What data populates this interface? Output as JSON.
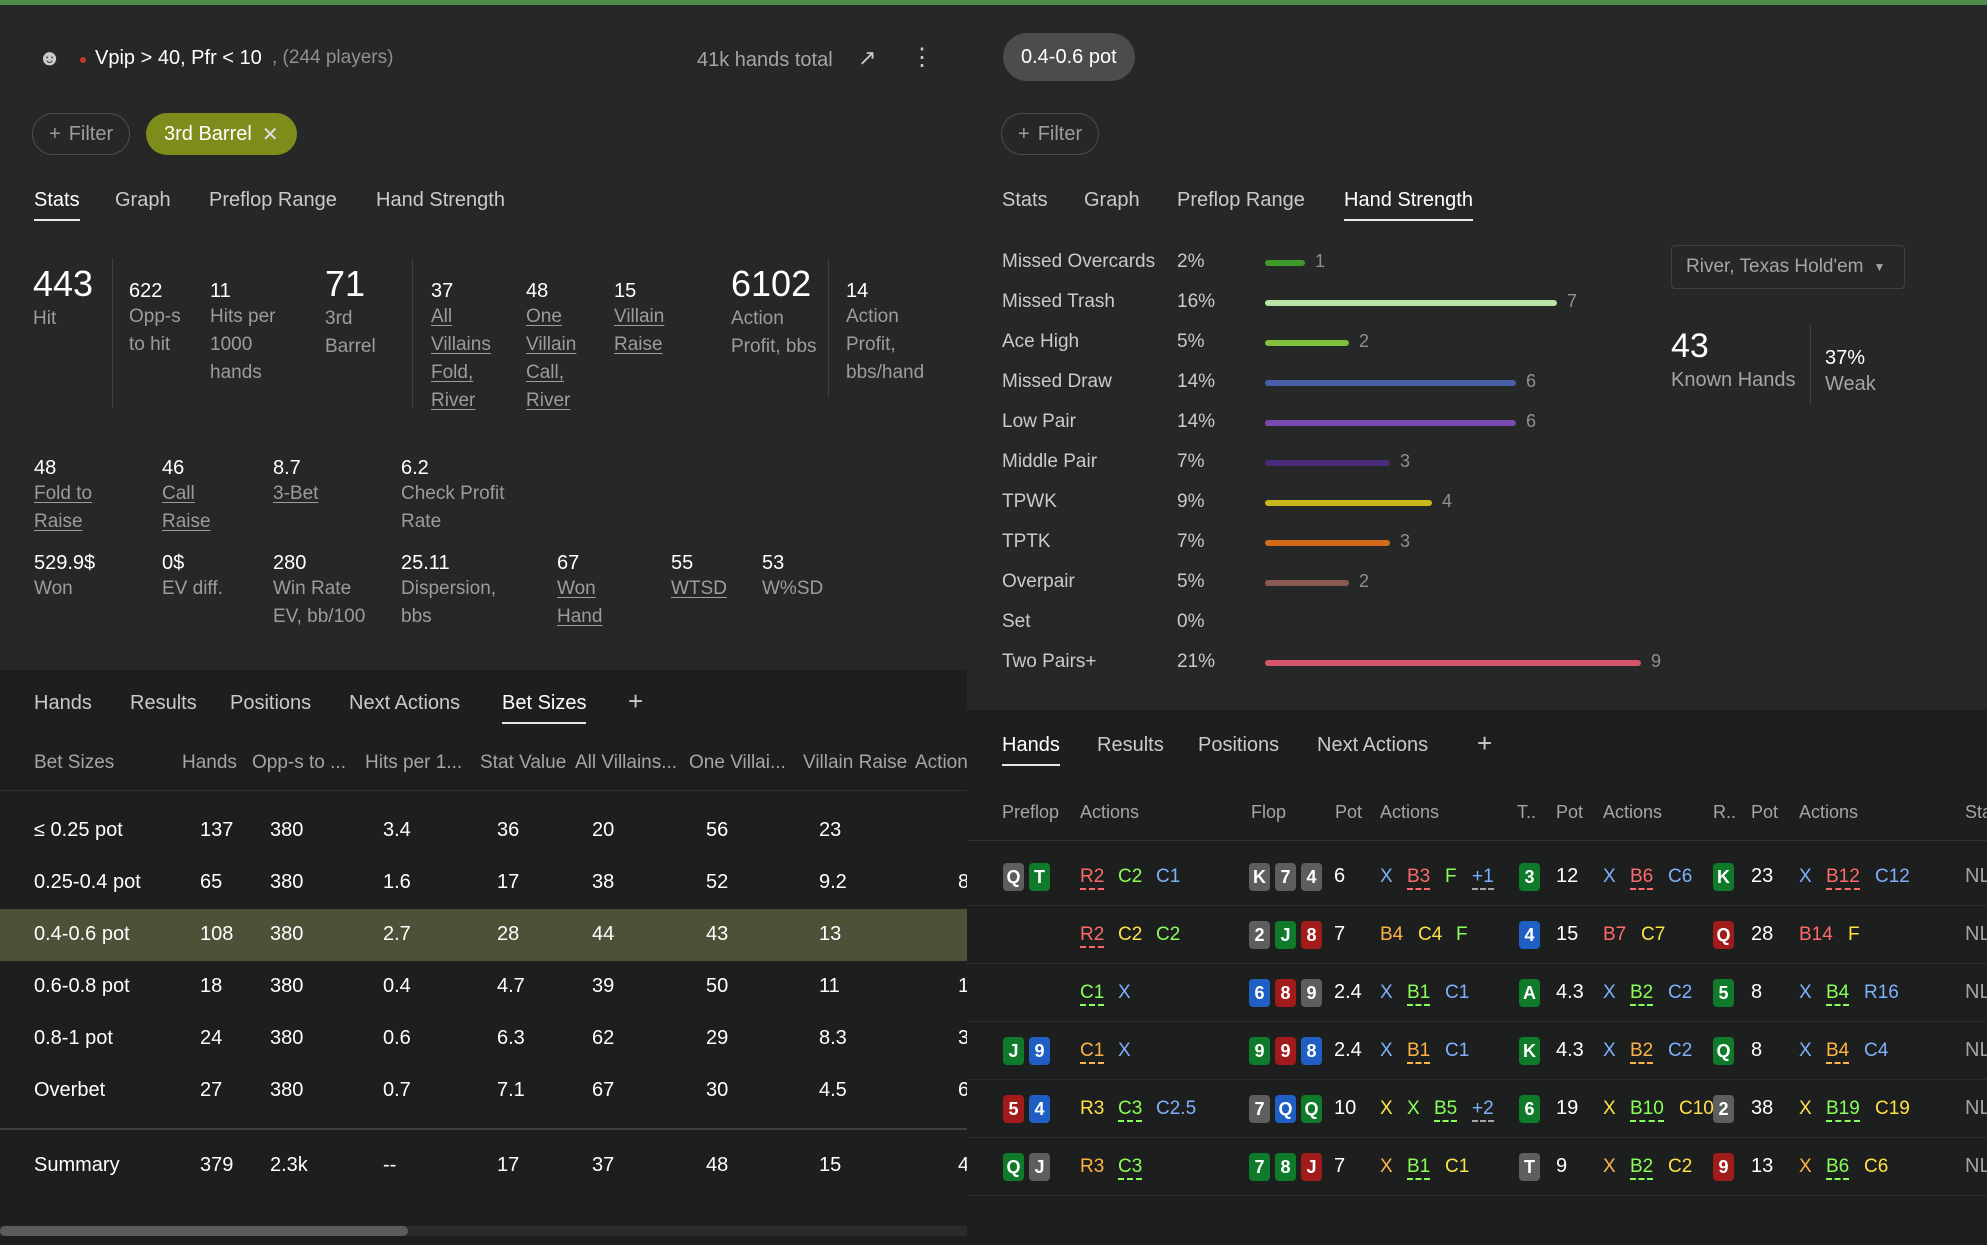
{
  "left": {
    "header": {
      "title": "Vpip > 40, Pfr < 10",
      "players": ", (244 players)",
      "hands_total": "41k hands total"
    },
    "filter_label": "Filter",
    "active_tag": "3rd Barrel",
    "tabs": [
      "Stats",
      "Graph",
      "Preflop Range",
      "Hand Strength"
    ],
    "stats_row1": [
      {
        "v": "443",
        "l": "Hit"
      },
      {
        "v": "622",
        "l": "Opp-s to hit"
      },
      {
        "v": "11",
        "l": "Hits per 1000 hands"
      },
      {
        "v": "71",
        "l": "3rd Barrel"
      },
      {
        "v": "37",
        "l": "All Villains Fold, River"
      },
      {
        "v": "48",
        "l": "One Villain Call, River"
      },
      {
        "v": "15",
        "l": "Villain Raise"
      },
      {
        "v": "6102",
        "l": "Action Profit, bbs"
      },
      {
        "v": "14",
        "l": "Action Profit, bbs/hand"
      }
    ],
    "stats_row2": [
      {
        "v": "48",
        "l": "Fold to Raise"
      },
      {
        "v": "46",
        "l": "Call Raise"
      },
      {
        "v": "8.7",
        "l": "3-Bet"
      },
      {
        "v": "6.2",
        "l": "Check Profit Rate"
      }
    ],
    "stats_row3": [
      {
        "v": "529.9$",
        "l": "Won"
      },
      {
        "v": "0$",
        "l": "EV diff."
      },
      {
        "v": "280",
        "l": "Win Rate EV, bb/100"
      },
      {
        "v": "25.11",
        "l": "Dispersion, bbs"
      },
      {
        "v": "67",
        "l": "Won Hand"
      },
      {
        "v": "55",
        "l": "WTSD"
      },
      {
        "v": "53",
        "l": "W%SD"
      }
    ],
    "bottom_tabs": [
      "Hands",
      "Results",
      "Positions",
      "Next Actions",
      "Bet Sizes"
    ],
    "table": {
      "headers": [
        "Bet Sizes",
        "Hands",
        "Opp-s to ...",
        "Hits per 1...",
        "Stat Value",
        "All Villains...",
        "One Villai...",
        "Villain Raise",
        "Action"
      ],
      "rows": [
        [
          "≤ 0.25 pot",
          "137",
          "380",
          "3.4",
          "36",
          "20",
          "56",
          "23",
          ""
        ],
        [
          "0.25-0.4 pot",
          "65",
          "380",
          "1.6",
          "17",
          "38",
          "52",
          "9.2",
          "8"
        ],
        [
          "0.4-0.6 pot",
          "108",
          "380",
          "2.7",
          "28",
          "44",
          "43",
          "13",
          ""
        ],
        [
          "0.6-0.8 pot",
          "18",
          "380",
          "0.4",
          "4.7",
          "39",
          "50",
          "11",
          "1"
        ],
        [
          "0.8-1 pot",
          "24",
          "380",
          "0.6",
          "6.3",
          "62",
          "29",
          "8.3",
          "3"
        ],
        [
          "Overbet",
          "27",
          "380",
          "0.7",
          "7.1",
          "67",
          "30",
          "4.5",
          "6"
        ]
      ],
      "summary": [
        "Summary",
        "379",
        "2.3k",
        "--",
        "17",
        "37",
        "48",
        "15",
        "4"
      ]
    }
  },
  "right": {
    "pill": "0.4-0.6 pot",
    "filter_label": "Filter",
    "tabs": [
      "Stats",
      "Graph",
      "Preflop Range",
      "Hand Strength"
    ],
    "hand_strength": [
      {
        "name": "Missed Overcards",
        "pct": "2%",
        "count": "1",
        "value": 1,
        "color": "#3e9a2a"
      },
      {
        "name": "Missed Trash",
        "pct": "16%",
        "count": "7",
        "value": 7,
        "color": "#b9e3a5"
      },
      {
        "name": "Ace High",
        "pct": "5%",
        "count": "2",
        "value": 2,
        "color": "#7fbf3a"
      },
      {
        "name": "Missed Draw",
        "pct": "14%",
        "count": "6",
        "value": 6,
        "color": "#4a5ea8"
      },
      {
        "name": "Low Pair",
        "pct": "14%",
        "count": "6",
        "value": 6,
        "color": "#7a4bb0"
      },
      {
        "name": "Middle Pair",
        "pct": "7%",
        "count": "3",
        "value": 3,
        "color": "#4a2a7a"
      },
      {
        "name": "TPWK",
        "pct": "9%",
        "count": "4",
        "value": 4,
        "color": "#c9b81c"
      },
      {
        "name": "TPTK",
        "pct": "7%",
        "count": "3",
        "value": 3,
        "color": "#d46a1a"
      },
      {
        "name": "Overpair",
        "pct": "5%",
        "count": "2",
        "value": 2,
        "color": "#8a5a52"
      },
      {
        "name": "Set",
        "pct": "0%",
        "count": "",
        "value": 0,
        "color": "#888"
      },
      {
        "name": "Two Pairs+",
        "pct": "21%",
        "count": "9",
        "value": 9,
        "color": "#d4546a"
      }
    ],
    "dropdown": "River, Texas Hold'em",
    "known_hands": {
      "v": "43",
      "l": "Known Hands"
    },
    "weak": {
      "v": "37%",
      "l": "Weak"
    },
    "bottom_tabs": [
      "Hands",
      "Results",
      "Positions",
      "Next Actions"
    ],
    "headers": [
      "Preflop",
      "Actions",
      "Flop",
      "Pot",
      "Actions",
      "T..",
      "Pot",
      "Actions",
      "R..",
      "Pot",
      "Actions",
      "Sta"
    ],
    "hands": [
      {
        "pre": [
          [
            "Q",
            "cgr"
          ],
          [
            "T",
            "cgreen"
          ]
        ],
        "pa": [
          [
            "R2",
            "aR",
            "dashR"
          ],
          [
            "C2",
            "aC",
            ""
          ],
          [
            "C1",
            "aCb",
            ""
          ]
        ],
        "flop": [
          [
            "K",
            "cgr"
          ],
          [
            "7",
            "cgr"
          ],
          [
            "4",
            "cgr"
          ]
        ],
        "fp": "6",
        "fa": [
          [
            "X",
            "aX",
            ""
          ],
          [
            "B3",
            "aR",
            "dashR"
          ],
          [
            "F",
            "aF",
            ""
          ],
          [
            "+1",
            "aX",
            "dashW"
          ]
        ],
        "turn": [
          "3",
          "cgreen"
        ],
        "tp": "12",
        "ta": [
          [
            "X",
            "aX",
            ""
          ],
          [
            "B6",
            "aR",
            "dashR"
          ],
          [
            "C6",
            "aCb",
            ""
          ]
        ],
        "river": [
          "K",
          "cgreen"
        ],
        "rp": "23",
        "ra": [
          [
            "X",
            "aX",
            ""
          ],
          [
            "B12",
            "aR",
            "dashR"
          ],
          [
            "C12",
            "aCb",
            ""
          ]
        ],
        "st": "NL"
      },
      {
        "pre": [],
        "pa": [
          [
            "R2",
            "aR",
            "dashR"
          ],
          [
            "C2",
            "aY",
            ""
          ],
          [
            "C2",
            "aC",
            ""
          ]
        ],
        "flop": [
          [
            "2",
            "cgr"
          ],
          [
            "J",
            "cgreen"
          ],
          [
            "8",
            "cr"
          ]
        ],
        "fp": "7",
        "fa": [
          [
            "B4",
            "aB",
            ""
          ],
          [
            "C4",
            "aY",
            ""
          ],
          [
            "F",
            "aF",
            ""
          ]
        ],
        "turn": [
          "4",
          "cb"
        ],
        "tp": "15",
        "ta": [
          [
            "B7",
            "aR",
            ""
          ],
          [
            "C7",
            "aY",
            ""
          ]
        ],
        "river": [
          "Q",
          "cr"
        ],
        "rp": "28",
        "ra": [
          [
            "B14",
            "aR",
            ""
          ],
          [
            "F",
            "aY",
            ""
          ]
        ],
        "st": "NL"
      },
      {
        "pre": [],
        "pa": [
          [
            "C1",
            "aC",
            "dashG"
          ],
          [
            "X",
            "aX",
            ""
          ]
        ],
        "flop": [
          [
            "6",
            "cb"
          ],
          [
            "8",
            "cr"
          ],
          [
            "9",
            "cgr"
          ]
        ],
        "fp": "2.4",
        "fa": [
          [
            "X",
            "aX",
            ""
          ],
          [
            "B1",
            "aC",
            "dashG"
          ],
          [
            "C1",
            "aCb",
            ""
          ]
        ],
        "turn": [
          "A",
          "cgreen"
        ],
        "tp": "4.3",
        "ta": [
          [
            "X",
            "aX",
            ""
          ],
          [
            "B2",
            "aC",
            "dashG"
          ],
          [
            "C2",
            "aCb",
            ""
          ]
        ],
        "river": [
          "5",
          "cgreen"
        ],
        "rp": "8",
        "ra": [
          [
            "X",
            "aX",
            ""
          ],
          [
            "B4",
            "aC",
            "dashG"
          ],
          [
            "R16",
            "aCb",
            ""
          ]
        ],
        "st": "NL"
      },
      {
        "pre": [
          [
            "J",
            "cgreen"
          ],
          [
            "9",
            "cb"
          ]
        ],
        "pa": [
          [
            "C1",
            "aB",
            "dashO"
          ],
          [
            "X",
            "aX",
            ""
          ]
        ],
        "flop": [
          [
            "9",
            "cgreen"
          ],
          [
            "9",
            "cr"
          ],
          [
            "8",
            "cb"
          ]
        ],
        "fp": "2.4",
        "fa": [
          [
            "X",
            "aX",
            ""
          ],
          [
            "B1",
            "aB",
            "dashO"
          ],
          [
            "C1",
            "aCb",
            ""
          ]
        ],
        "turn": [
          "K",
          "cgreen"
        ],
        "tp": "4.3",
        "ta": [
          [
            "X",
            "aX",
            ""
          ],
          [
            "B2",
            "aB",
            "dashO"
          ],
          [
            "C2",
            "aCb",
            ""
          ]
        ],
        "river": [
          "Q",
          "cgreen"
        ],
        "rp": "8",
        "ra": [
          [
            "X",
            "aX",
            ""
          ],
          [
            "B4",
            "aB",
            "dashO"
          ],
          [
            "C4",
            "aCb",
            ""
          ]
        ],
        "st": "NL"
      },
      {
        "pre": [
          [
            "5",
            "cr"
          ],
          [
            "4",
            "cb"
          ]
        ],
        "pa": [
          [
            "R3",
            "aY",
            ""
          ],
          [
            "C3",
            "aC",
            "dashG"
          ],
          [
            "C2.5",
            "aCb",
            ""
          ]
        ],
        "flop": [
          [
            "7",
            "cgr"
          ],
          [
            "Q",
            "cb"
          ],
          [
            "Q",
            "cgreen"
          ]
        ],
        "fp": "10",
        "fa": [
          [
            "X",
            "aY",
            ""
          ],
          [
            "X",
            "aC",
            ""
          ],
          [
            "B5",
            "aC",
            "dashG"
          ],
          [
            "+2",
            "aX",
            "dashW"
          ]
        ],
        "turn": [
          "6",
          "cgreen"
        ],
        "tp": "19",
        "ta": [
          [
            "X",
            "aY",
            ""
          ],
          [
            "B10",
            "aC",
            "dashG"
          ],
          [
            "C10",
            "aY",
            ""
          ]
        ],
        "river": [
          "2",
          "cgr"
        ],
        "rp": "38",
        "ra": [
          [
            "X",
            "aY",
            ""
          ],
          [
            "B19",
            "aC",
            "dashG"
          ],
          [
            "C19",
            "aY",
            ""
          ]
        ],
        "st": "NL"
      },
      {
        "pre": [
          [
            "Q",
            "cgreen"
          ],
          [
            "J",
            "cgr"
          ]
        ],
        "pa": [
          [
            "R3",
            "aB",
            ""
          ],
          [
            "C3",
            "aC",
            "dashG"
          ]
        ],
        "flop": [
          [
            "7",
            "cgreen"
          ],
          [
            "8",
            "cgreen"
          ],
          [
            "J",
            "cr"
          ]
        ],
        "fp": "7",
        "fa": [
          [
            "X",
            "aB",
            ""
          ],
          [
            "B1",
            "aC",
            "dashG"
          ],
          [
            "C1",
            "aY",
            ""
          ]
        ],
        "turn": [
          "T",
          "cgr"
        ],
        "tp": "9",
        "ta": [
          [
            "X",
            "aB",
            ""
          ],
          [
            "B2",
            "aC",
            "dashG"
          ],
          [
            "C2",
            "aY",
            ""
          ]
        ],
        "river": [
          "9",
          "cr"
        ],
        "rp": "13",
        "ra": [
          [
            "X",
            "aB",
            ""
          ],
          [
            "B6",
            "aC",
            "dashG"
          ],
          [
            "C6",
            "aY",
            ""
          ]
        ],
        "st": "NL"
      }
    ]
  }
}
